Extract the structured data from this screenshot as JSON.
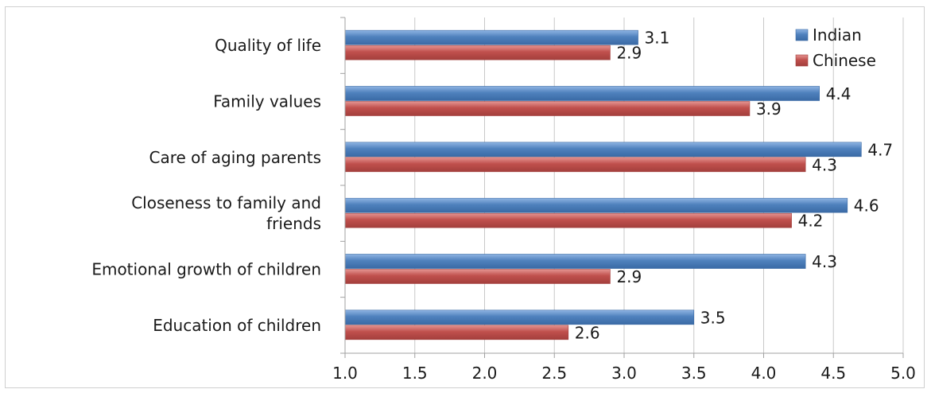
{
  "chart_data": {
    "type": "bar",
    "orientation": "horizontal",
    "title": "",
    "xlabel": "",
    "ylabel": "",
    "categories": [
      "Quality of life",
      "Family values",
      "Care of aging parents",
      "Closeness to family and friends",
      "Emotional growth of children",
      "Education of children"
    ],
    "category_lines": [
      [
        "Quality of life"
      ],
      [
        "Family values"
      ],
      [
        "Care of aging parents"
      ],
      [
        "Closeness to family and",
        "friends"
      ],
      [
        "Emotional growth of children"
      ],
      [
        "Education of children"
      ]
    ],
    "series": [
      {
        "name": "Indian",
        "color": "#4f81bd",
        "values": [
          3.1,
          4.4,
          4.7,
          4.6,
          4.3,
          3.5
        ],
        "labels": [
          "3.1",
          "4.4",
          "4.7",
          "4.6",
          "4.3",
          "3.5"
        ]
      },
      {
        "name": "Chinese",
        "color": "#c0504d",
        "values": [
          2.9,
          3.9,
          4.3,
          4.2,
          2.9,
          2.6
        ],
        "labels": [
          "2.9",
          "3.9",
          "4.3",
          "4.2",
          "2.9",
          "2.6"
        ]
      }
    ],
    "xlim": [
      1.0,
      5.0
    ],
    "ticks": [
      "1.0",
      "1.5",
      "2.0",
      "2.5",
      "3.0",
      "3.5",
      "4.0",
      "4.5",
      "5.0"
    ],
    "tick_values": [
      1.0,
      1.5,
      2.0,
      2.5,
      3.0,
      3.5,
      4.0,
      4.5,
      5.0
    ],
    "grid": true,
    "legend_position": "top-right"
  }
}
